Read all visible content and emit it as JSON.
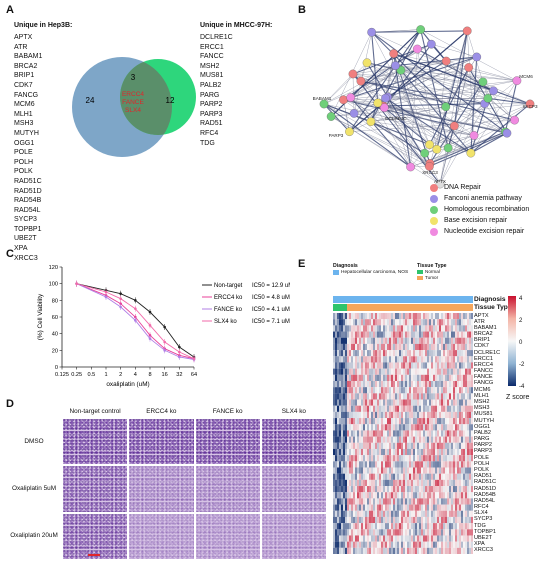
{
  "panels": {
    "A": "A",
    "B": "B",
    "C": "C",
    "D": "D",
    "E": "E"
  },
  "venn": {
    "left_heading": "Unique in Hep3B:",
    "right_heading": "Unique in MHCC-97H:",
    "left_genes": [
      "APTX",
      "ATR",
      "BABAM1",
      "BRCA2",
      "BRIP1",
      "CDK7",
      "FANCG",
      "MCM6",
      "MLH1",
      "MSH3",
      "MUTYH",
      "OGG1",
      "POLE",
      "POLH",
      "POLK",
      "RAD51C",
      "RAD51D",
      "RAD54B",
      "RAD54L",
      "SYCP3",
      "TOPBP1",
      "UBE2T",
      "XPA",
      "XRCC3"
    ],
    "right_genes": [
      "DCLRE1C",
      "ERCC1",
      "FANCC",
      "MSH2",
      "MUS81",
      "PALB2",
      "PARG",
      "PARP2",
      "PARP3",
      "RAD51",
      "RFC4",
      "TDG"
    ],
    "left_count": "24",
    "overlap_count": "3",
    "right_count": "12",
    "overlap_genes": [
      "ERCC4",
      "FANCE",
      "SLX4"
    ],
    "left_color": "#7ea6c8",
    "right_color": "#2ed67c",
    "overlap_text_color": "#e0262b"
  },
  "network": {
    "legend": [
      {
        "label": "DNA Repair",
        "color": "#f07f7f"
      },
      {
        "label": "Fanconi anemia pathway",
        "color": "#9b8fe6"
      },
      {
        "label": "Homologous recombination",
        "color": "#6fcf7a"
      },
      {
        "label": "Base excision repair",
        "color": "#f1e36b"
      },
      {
        "label": "Nucleotide excision repair",
        "color": "#f08ae0"
      }
    ],
    "labels": [
      "BABAM1",
      "PARP3",
      "APTX",
      "MCM6",
      "SYCP3",
      "XRCC3",
      "DCLRE1C"
    ]
  },
  "chart_data": {
    "type": "line",
    "xlabel": "oxaliplatin (uM)",
    "ylabel": "(%) Cell Viability",
    "x_ticks": [
      "0.125",
      "0.25",
      "0.5",
      "1",
      "2",
      "4",
      "8",
      "16",
      "32",
      "64"
    ],
    "y_ticks": [
      "0",
      "20",
      "40",
      "60",
      "80",
      "100",
      "120"
    ],
    "ylim": [
      0,
      120
    ],
    "x_scale": "log2",
    "legend_position": "right",
    "series": [
      {
        "name": "Non-target",
        "ic50_label": "IC50 = 12.9 uM",
        "color": "#222222",
        "x": [
          0.25,
          1,
          2,
          4,
          8,
          16,
          32,
          64
        ],
        "y": [
          100,
          92,
          88,
          80,
          66,
          48,
          24,
          12
        ]
      },
      {
        "name": "ERCC4 ko",
        "ic50_label": "IC50 = 4.8 uM",
        "color": "#e8409a",
        "x": [
          0.25,
          1,
          2,
          4,
          8,
          16,
          32,
          64
        ],
        "y": [
          100,
          86,
          76,
          60,
          38,
          22,
          14,
          10
        ]
      },
      {
        "name": "FANCE ko",
        "ic50_label": "IC50 = 4.1 uM",
        "color": "#b07fe6",
        "x": [
          0.25,
          1,
          2,
          4,
          8,
          16,
          32,
          64
        ],
        "y": [
          100,
          84,
          72,
          56,
          34,
          20,
          12,
          9
        ]
      },
      {
        "name": "SLX4 ko",
        "ic50_label": "IC50 = 7.1 uM",
        "color": "#f26aaa",
        "x": [
          0.25,
          1,
          2,
          4,
          8,
          16,
          32,
          64
        ],
        "y": [
          100,
          90,
          82,
          70,
          50,
          30,
          18,
          10
        ]
      }
    ]
  },
  "assay": {
    "columns": [
      "Non-target control",
      "ERCC4 ko",
      "FANCE ko",
      "SLX4 ko"
    ],
    "rows": [
      "DMSO",
      "Oxaliplatin 5uM",
      "Oxaliplatin 20uM"
    ]
  },
  "heatmap": {
    "diagnosis_title": "Diagnosis",
    "diagnosis_value": "Hepatocellular carcinoma, NOS",
    "tissue_title": "Tissue Type",
    "tissue_values": [
      "Normal",
      "Tumor"
    ],
    "row_label_diagnosis": "Diagnosis",
    "row_label_tissue": "Tissue Type",
    "genes": [
      "APTX",
      "ATR",
      "BABAM1",
      "BRCA2",
      "BRIP1",
      "CDK7",
      "DCLRE1C",
      "ERCC1",
      "ERCC4",
      "FANCC",
      "FANCE",
      "FANCG",
      "MCM6",
      "MLH1",
      "MSH2",
      "MSH3",
      "MUS81",
      "MUTYH",
      "OGG1",
      "PALB2",
      "PARG",
      "PARP2",
      "PARP3",
      "POLE",
      "POLH",
      "POLK",
      "RAD51",
      "RAD51C",
      "RAD51D",
      "RAD54B",
      "RAD54L",
      "RFC4",
      "SLX4",
      "SYCP3",
      "TDG",
      "TOPBP1",
      "UBE2T",
      "XPA",
      "XRCC3"
    ],
    "colorbar_ticks": [
      "4",
      "2",
      "0",
      "-2",
      "-4"
    ],
    "colorbar_label": "Z score",
    "normal_color": "#2ec46b",
    "tumor_color": "#f5a65b",
    "diagnosis_color": "#6cb4ee"
  }
}
